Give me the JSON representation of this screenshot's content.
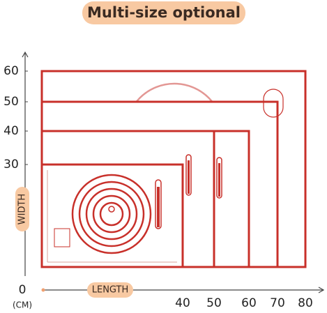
{
  "header": {
    "title": "Multi-size optional"
  },
  "y_axis": {
    "title": "WIDTH",
    "labels": [
      "60",
      "50",
      "40",
      "30"
    ]
  },
  "x_axis": {
    "title": "LENGTH",
    "labels": [
      "40",
      "50",
      "60",
      "70",
      "80"
    ]
  },
  "origin": "0",
  "unit": "(CM)"
}
